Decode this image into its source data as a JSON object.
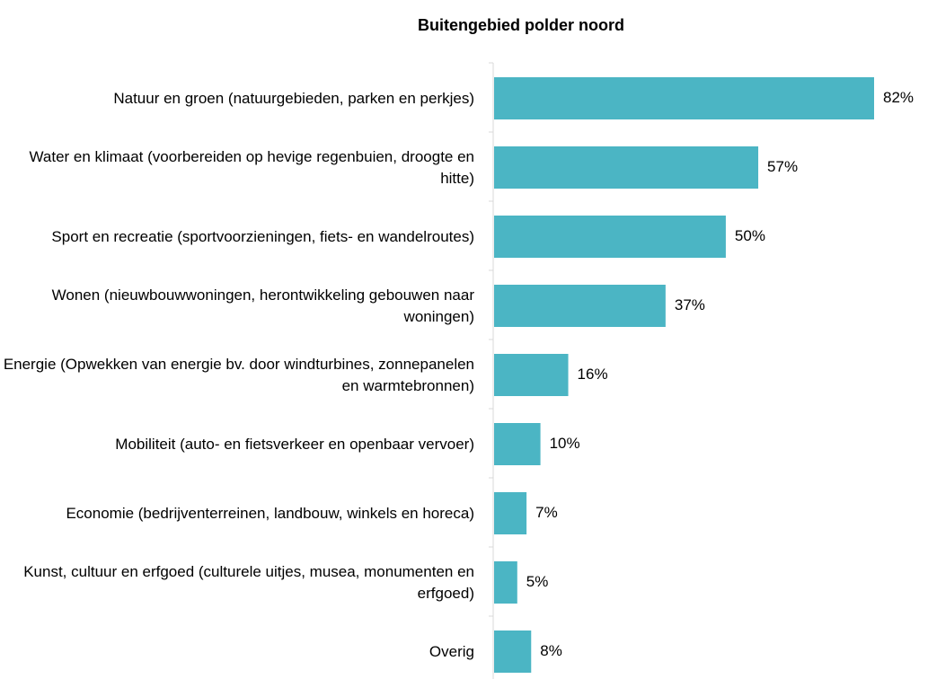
{
  "chart_data": {
    "type": "barh",
    "title": "Buitengebied polder noord",
    "categories": [
      "Natuur en groen (natuurgebieden, parken en perkjes)",
      "Water en klimaat (voorbereiden op hevige regenbuien, droogte en hitte)",
      "Sport en recreatie (sportvoorzieningen, fiets- en wandelroutes)",
      "Wonen (nieuwbouwwoningen, herontwikkeling gebouwen naar woningen)",
      "Energie (Opwekken van energie bv. door windturbines, zonnepanelen en warmtebronnen)",
      "Mobiliteit (auto- en fietsverkeer en openbaar vervoer)",
      "Economie (bedrijventerreinen, landbouw, winkels en horeca)",
      "Kunst, cultuur en erfgoed (culturele uitjes, musea, monumenten en erfgoed)",
      "Overig"
    ],
    "values": [
      82,
      57,
      50,
      37,
      16,
      10,
      7,
      5,
      8
    ],
    "value_labels": [
      "82%",
      "57%",
      "50%",
      "37%",
      "16%",
      "10%",
      "7%",
      "5%",
      "8%"
    ],
    "color": "#4bb5c4"
  }
}
